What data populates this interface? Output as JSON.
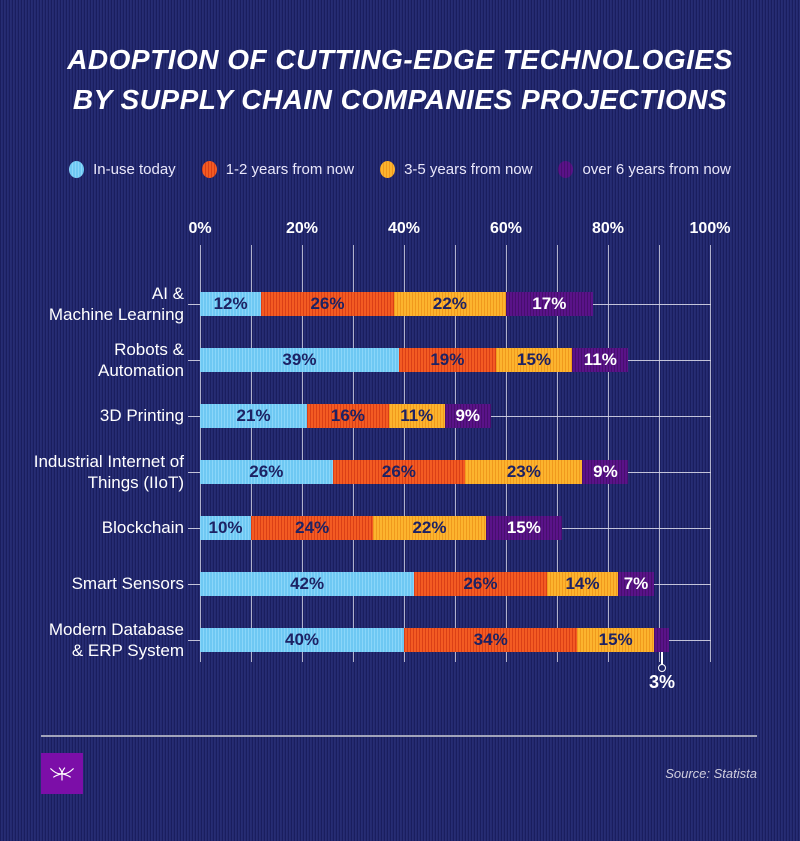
{
  "title": {
    "line1": "ADOPTION OF CUTTING-EDGE TECHNOLOGIES",
    "line2": "BY SUPPLY CHAIN COMPANIES PROJECTIONS"
  },
  "legend": {
    "items": [
      {
        "label": "In-use today",
        "color": "#6ec8f3",
        "stripe": "#8ad6f9",
        "text_color": "#1d2264"
      },
      {
        "label": "1-2 years from now",
        "color": "#f35b22",
        "stripe": "#db3f17",
        "text_color": "#1d2264"
      },
      {
        "label": "3-5 years from now",
        "color": "#fcb42e",
        "stripe": "#f0991d",
        "text_color": "#1d2264"
      },
      {
        "label": "over 6 years from now",
        "color": "#5a1389",
        "stripe": "#480e6e",
        "text_color": "#ffffff"
      }
    ]
  },
  "chart_data": {
    "type": "bar",
    "orientation": "horizontal",
    "stacked": true,
    "grid": true,
    "xlim": [
      0,
      100
    ],
    "grid_step_percent": 10,
    "x_ticks": [
      "0%",
      "20%",
      "40%",
      "60%",
      "80%",
      "100%"
    ],
    "value_suffix": "%",
    "series_names": [
      "In-use today",
      "1-2 years from now",
      "3-5 years from now",
      "over 6 years from now"
    ],
    "rows": [
      {
        "label": "AI &\nMachine Learning",
        "values": [
          12,
          26,
          22,
          17
        ]
      },
      {
        "label": "Robots &\nAutomation",
        "values": [
          39,
          19,
          15,
          11
        ]
      },
      {
        "label": "3D Printing",
        "values": [
          21,
          16,
          11,
          9
        ]
      },
      {
        "label": "Industrial Internet of\nThings (IIoT)",
        "values": [
          26,
          26,
          23,
          9
        ]
      },
      {
        "label": "Blockchain",
        "values": [
          10,
          24,
          22,
          15
        ]
      },
      {
        "label": "Smart Sensors",
        "values": [
          42,
          26,
          14,
          7
        ]
      },
      {
        "label": "Modern Database\n& ERP System",
        "values": [
          40,
          34,
          15,
          3
        ]
      }
    ],
    "callout": {
      "text": "3%",
      "row_index": 6,
      "segment_index": 3
    }
  },
  "footer": {
    "source": "Source: Statista",
    "logo_icon": "dragonfly-icon",
    "logo_color": "#7c0ea8"
  },
  "colors": {
    "background": "#232970",
    "gridline": "#c9c9dc",
    "title_text": "#ffffff"
  }
}
